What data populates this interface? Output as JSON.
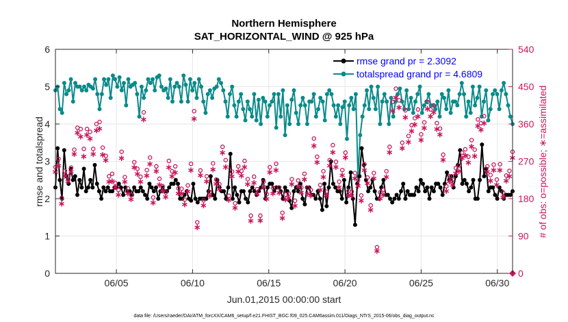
{
  "chart_data": {
    "type": "line",
    "title": [
      "Northern Hemisphere",
      "SAT_HORIZONTAL_WIND @ 925 hPa"
    ],
    "xlabel": "Jun.01,2015 00:00:00 start",
    "ylabel_left": "rmse and totalspread",
    "ylabel_right": "# of obs: o=possible; ∗=assimilated",
    "xlim": [
      1,
      31
    ],
    "ylim_left": [
      0,
      6
    ],
    "ylim_right": [
      0,
      540
    ],
    "xtick_values": [
      5,
      10,
      15,
      20,
      25,
      30
    ],
    "xtick_labels": [
      "06/05",
      "06/10",
      "06/15",
      "06/20",
      "06/25",
      "06/30"
    ],
    "ytick_left": [
      "0",
      "1",
      "2",
      "3",
      "4",
      "5",
      "6"
    ],
    "ytick_right": [
      "0",
      "90",
      "180",
      "270",
      "360",
      "450",
      "540"
    ],
    "legend": [
      "rmse grand pr = 2.3092",
      "totalspread grand pr = 4.6809"
    ],
    "footnote": "data file: /Users/raeder/DAI/ATM_forcXX/CAM6_setup/f.e21.FHIST_BGC.f09_025.CAM6assim.011/Diags_NTrS_2015-06/obs_diag_output.nc",
    "colors": {
      "rmse": "#000000",
      "totalspread": "#0a8a8a",
      "obs": "#c8175b",
      "legend_text": "#0000ff",
      "grid": "#e6e6e6"
    },
    "series": [
      {
        "name": "rmse",
        "values": [
          2.3,
          3.35,
          2.5,
          2.0,
          3.3,
          2.6,
          2.4,
          2.8,
          2.5,
          2.6,
          2.1,
          2.5,
          2.3,
          2.8,
          2.2,
          2.3,
          2.5,
          2.3,
          2.9,
          2.4,
          2.2,
          2.0,
          2.3,
          2.2,
          2.3,
          2.2,
          2.2,
          2.3,
          2.3,
          2.4,
          2.3,
          2.1,
          2.3,
          2.2,
          2.2,
          2.1,
          2.3,
          2.2,
          2.2,
          2.3,
          2.2,
          2.1,
          2.0,
          2.4,
          2.3,
          2.2,
          2.3,
          2.0,
          2.2,
          2.3,
          2.2,
          2.2,
          2.3,
          2.4,
          2.4,
          2.5,
          2.4,
          2.0,
          2.0,
          2.1,
          2.2,
          2.0,
          1.95,
          2.4,
          2.0,
          1.9,
          2.0,
          2.0,
          2.0,
          2.0,
          2.2,
          2.6,
          2.1,
          2.0,
          2.5,
          2.3,
          2.2,
          2.2,
          2.0,
          2.3,
          3.2,
          2.0,
          2.3,
          2.1,
          1.9,
          2.2,
          2.2,
          2.0,
          1.9,
          2.2,
          2.3,
          2.2,
          2.1,
          2.2,
          2.3,
          2.5,
          2.0,
          2.3,
          2.4,
          2.4,
          2.2,
          2.3,
          2.3,
          2.2,
          2.0,
          2.3,
          2.2,
          1.95,
          1.75,
          2.2,
          2.3,
          2.2,
          2.4,
          2.0,
          1.85,
          2.3,
          2.3,
          2.1,
          2.1,
          2.0,
          2.2,
          2.0,
          1.7,
          2.4,
          1.8,
          2.3,
          3.0,
          2.4,
          2.3,
          2.2,
          2.2,
          2.0,
          2.5,
          1.9,
          2.3,
          2.7,
          2.0,
          1.3,
          2.4,
          2.6,
          3.35,
          2.9,
          2.5,
          2.2,
          2.3,
          2.5,
          2.2,
          2.0,
          2.0,
          2.3,
          2.5,
          2.1,
          2.1,
          2.0,
          1.9,
          2.0,
          2.1,
          2.0,
          2.2,
          2.4,
          2.0,
          2.2,
          2.1,
          2.1,
          2.1,
          2.3,
          2.2,
          2.5,
          2.4,
          2.2,
          2.3,
          2.0,
          2.3,
          2.2,
          2.4,
          2.4,
          2.3,
          2.1,
          2.4,
          2.7,
          2.5,
          2.6,
          2.3,
          2.6,
          2.9,
          3.3,
          2.4,
          2.5,
          2.4,
          2.2,
          2.3,
          2.5,
          2.0,
          2.0,
          2.5,
          3.45,
          2.6,
          2.8,
          2.2,
          2.3,
          2.3,
          2.1,
          2.0,
          2.3,
          2.2,
          2.0,
          2.1,
          2.1,
          2.1,
          2.2
        ]
      },
      {
        "name": "totalspread",
        "values": [
          4.9,
          5.0,
          4.4,
          4.3,
          5.1,
          4.8,
          4.9,
          5.2,
          4.6,
          5.1,
          5.0,
          5.0,
          4.9,
          5.0,
          4.9,
          5.05,
          5.0,
          4.95,
          5.2,
          4.8,
          4.4,
          4.8,
          5.2,
          5.05,
          5.2,
          4.7,
          5.3,
          5.2,
          5.0,
          5.25,
          4.9,
          5.1,
          4.5,
          5.2,
          5.0,
          5.05,
          5.1,
          4.8,
          4.2,
          5.0,
          4.7,
          4.9,
          5.2,
          5.1,
          5.2,
          4.9,
          5.25,
          5.3,
          5.0,
          4.9,
          4.95,
          4.7,
          5.2,
          4.6,
          5.0,
          5.1,
          5.0,
          4.6,
          5.3,
          5.05,
          4.6,
          5.2,
          4.9,
          5.1,
          4.7,
          5.2,
          5.0,
          4.6,
          4.3,
          4.8,
          4.9,
          4.7,
          4.95,
          5.0,
          5.2,
          5.1,
          4.9,
          4.6,
          4.2,
          4.8,
          5.0,
          4.5,
          4.2,
          4.6,
          4.8,
          4.4,
          4.1,
          4.6,
          4.4,
          4.2,
          4.8,
          4.1,
          4.65,
          4.0,
          4.7,
          4.6,
          4.2,
          4.5,
          4.6,
          4.8,
          3.9,
          4.8,
          4.2,
          4.9,
          3.7,
          4.5,
          4.0,
          4.65,
          4.9,
          4.3,
          4.0,
          4.5,
          4.7,
          4.5,
          4.0,
          4.6,
          4.6,
          4.8,
          4.2,
          4.4,
          4.7,
          4.6,
          4.1,
          4.8,
          4.9,
          4.8,
          4.5,
          4.2,
          4.5,
          4.0,
          4.45,
          4.6,
          3.6,
          4.5,
          4.7,
          4.4,
          4.8,
          2.6,
          3.7,
          4.2,
          4.5,
          4.9,
          4.4,
          5.0,
          4.7,
          4.4,
          5.0,
          4.0,
          4.6,
          4.8,
          4.6,
          4.0,
          4.7,
          4.2,
          4.6,
          4.8,
          4.95,
          4.6,
          4.4,
          4.9,
          4.4,
          4.7,
          4.3,
          4.6,
          4.8,
          5.0,
          4.3,
          4.5,
          4.6,
          4.8,
          4.5,
          4.5,
          4.4,
          4.6,
          4.2,
          4.8,
          4.7,
          4.4,
          4.9,
          4.3,
          4.6,
          4.6,
          4.5,
          4.8,
          5.1,
          4.8,
          4.2,
          4.6,
          4.3,
          5.0,
          4.5,
          4.7,
          5.0,
          4.2,
          4.6,
          4.9,
          4.1,
          4.4,
          4.8,
          4.9,
          4.8,
          4.4,
          4.9,
          5.1,
          4.8,
          4.5,
          4.2,
          4.0
        ]
      }
    ],
    "obs_possible": [
      256,
      276,
      182,
      247,
      234,
      255,
      298,
      351,
      348,
      300,
      348,
      341,
      300,
      360,
      365,
      303,
      283,
      234,
      240,
      218,
      201,
      293,
      232,
      205,
      189,
      268,
      252,
      233,
      388,
      249,
      279,
      183,
      258,
      228,
      210,
      195,
      271,
      246,
      258,
      205,
      204,
      178,
      212,
      264,
      391,
      123,
      248,
      176,
      234,
      196,
      265,
      226,
      215,
      305,
      273,
      187,
      245,
      169,
      258,
      247,
      271,
      227,
      139,
      233,
      203,
      139,
      221,
      191,
      256,
      206,
      264,
      207,
      146,
      190,
      192,
      227,
      175,
      224,
      207,
      240,
      206,
      201,
      325,
      281,
      213,
      246,
      197,
      273,
      309,
      269,
      221,
      249,
      291,
      199,
      197,
      242,
      224,
      188,
      263,
      231,
      164,
      242,
      63,
      195,
      202,
      246,
      305,
      413,
      445,
      417,
      315,
      393,
      331,
      357,
      374,
      395,
      335,
      364,
      413,
      395,
      405,
      362,
      349,
      286,
      210,
      234,
      226,
      254,
      260,
      291,
      299,
      281,
      321,
      298,
      371,
      362,
      379,
      258,
      237,
      262,
      226,
      263,
      195,
      236,
      247,
      293
    ],
    "obs_assimilated": [
      246,
      261,
      169,
      236,
      224,
      246,
      289,
      340,
      331,
      283,
      335,
      326,
      289,
      346,
      350,
      287,
      274,
      222,
      224,
      209,
      191,
      279,
      222,
      194,
      180,
      257,
      241,
      222,
      372,
      237,
      265,
      172,
      248,
      215,
      201,
      186,
      257,
      235,
      244,
      194,
      194,
      168,
      199,
      250,
      374,
      112,
      238,
      165,
      223,
      188,
      252,
      217,
      205,
      292,
      258,
      178,
      235,
      159,
      247,
      237,
      258,
      216,
      128,
      220,
      193,
      129,
      210,
      181,
      245,
      194,
      250,
      196,
      135,
      179,
      183,
      216,
      164,
      211,
      196,
      228,
      193,
      189,
      309,
      269,
      202,
      234,
      189,
      261,
      293,
      258,
      209,
      238,
      281,
      190,
      188,
      230,
      212,
      177,
      250,
      219,
      154,
      230,
      55,
      182,
      191,
      234,
      293,
      393,
      425,
      401,
      303,
      377,
      318,
      344,
      360,
      380,
      323,
      352,
      398,
      380,
      390,
      349,
      336,
      275,
      200,
      223,
      215,
      243,
      248,
      279,
      286,
      268,
      307,
      284,
      357,
      348,
      363,
      246,
      225,
      250,
      215,
      250,
      185,
      225,
      235,
      280
    ]
  }
}
